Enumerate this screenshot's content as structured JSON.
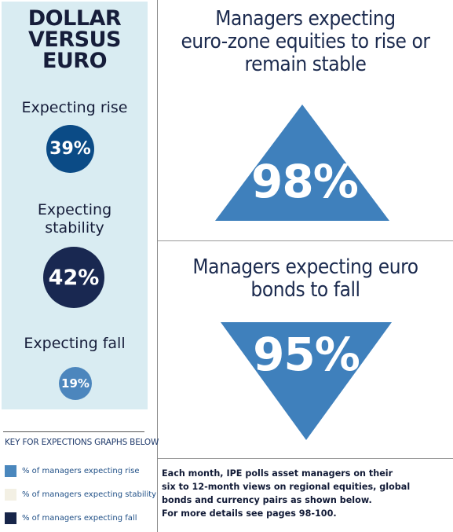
{
  "left_panel": {
    "title_lines": [
      "DOLLAR",
      "VERSUS",
      "EURO"
    ],
    "rise_label": "Expecting rise",
    "rise_value": "39%",
    "stability_label_lines": [
      "Expecting",
      "stability"
    ],
    "stability_value": "42%",
    "fall_label": "Expecting fall",
    "fall_value": "19%"
  },
  "equities": {
    "headline_lines": [
      "Managers expecting",
      "euro-zone equities to rise or",
      "remain stable"
    ],
    "value": "98%"
  },
  "bonds": {
    "headline_lines": [
      "Managers expecting euro",
      "bonds to fall"
    ],
    "value": "95%"
  },
  "key": {
    "title": "KEY FOR EXPECTIONS GRAPHS BELOW",
    "items": [
      {
        "label": "% of managers expecting rise",
        "color": "#4a87bd"
      },
      {
        "label": "% of managers expecting stability",
        "color": "#f3f0e4"
      },
      {
        "label": "% of managers expecting fall",
        "color": "#172549"
      }
    ]
  },
  "info_lines": [
    "Each month, IPE polls asset managers on their",
    "six to 12-month views on regional equities, global",
    "bonds and currency pairs as shown below.",
    "For more details see pages 98-100."
  ],
  "colors": {
    "panel_bg": "#d9ecf2",
    "rise": "#0b4b86",
    "stability": "#192851",
    "fall": "#4c86bd",
    "triangle": "#3f80bc"
  }
}
